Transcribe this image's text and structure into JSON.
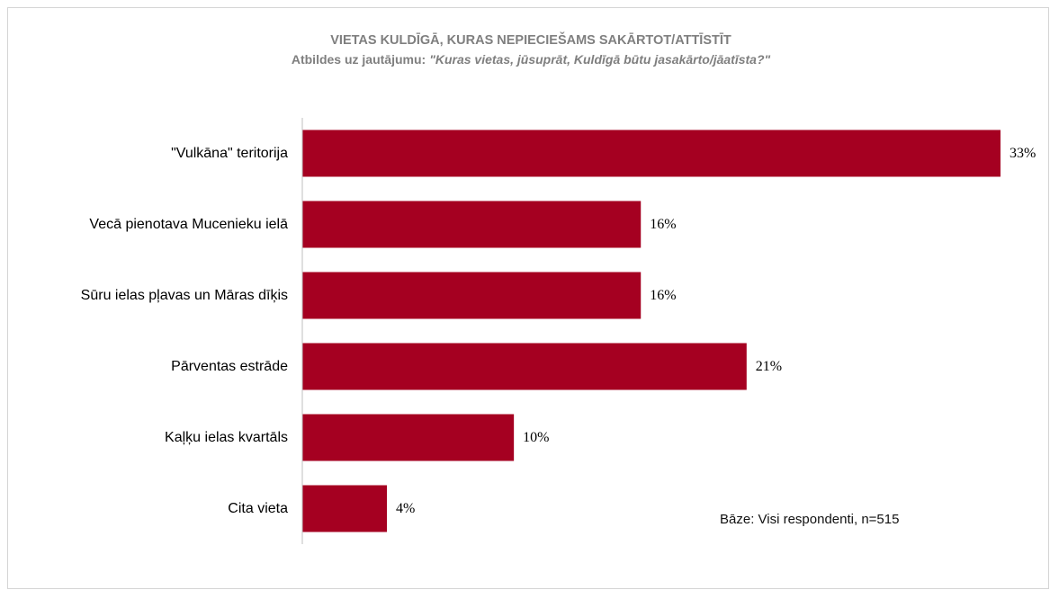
{
  "chart_data": {
    "type": "bar",
    "horizontal": true,
    "title": "VIETAS KULDĪGĀ, KURAS NEPIECIEŠAMS SAKĀRTOT/ATTĪSTĪT",
    "subtitle": {
      "lead": "Atbildes uz jautājumu:",
      "question": "\"Kuras vietas, jūsuprāt, Kuldīgā būtu jasakārto/jāatīsta?\""
    },
    "categories": [
      "\"Vulkāna\" teritorija",
      "Vecā pienotava Mucenieku ielā",
      "Sūru ielas pļavas un Māras dīķis",
      "Pārventas estrāde",
      "Kaļķu ielas kvartāls",
      "Cita vieta"
    ],
    "values": [
      33,
      16,
      16,
      21,
      10,
      4
    ],
    "data_labels": [
      "33%",
      "16%",
      "16%",
      "21%",
      "10%",
      "4%"
    ],
    "xlim": [
      0,
      35
    ],
    "grid": false,
    "show_legend": false,
    "bar_color": "#A50021",
    "title_color": "#7F7F7F",
    "axis_color": "#BFBFBF",
    "note": "Bāze: Visi respondenti, n=515"
  }
}
